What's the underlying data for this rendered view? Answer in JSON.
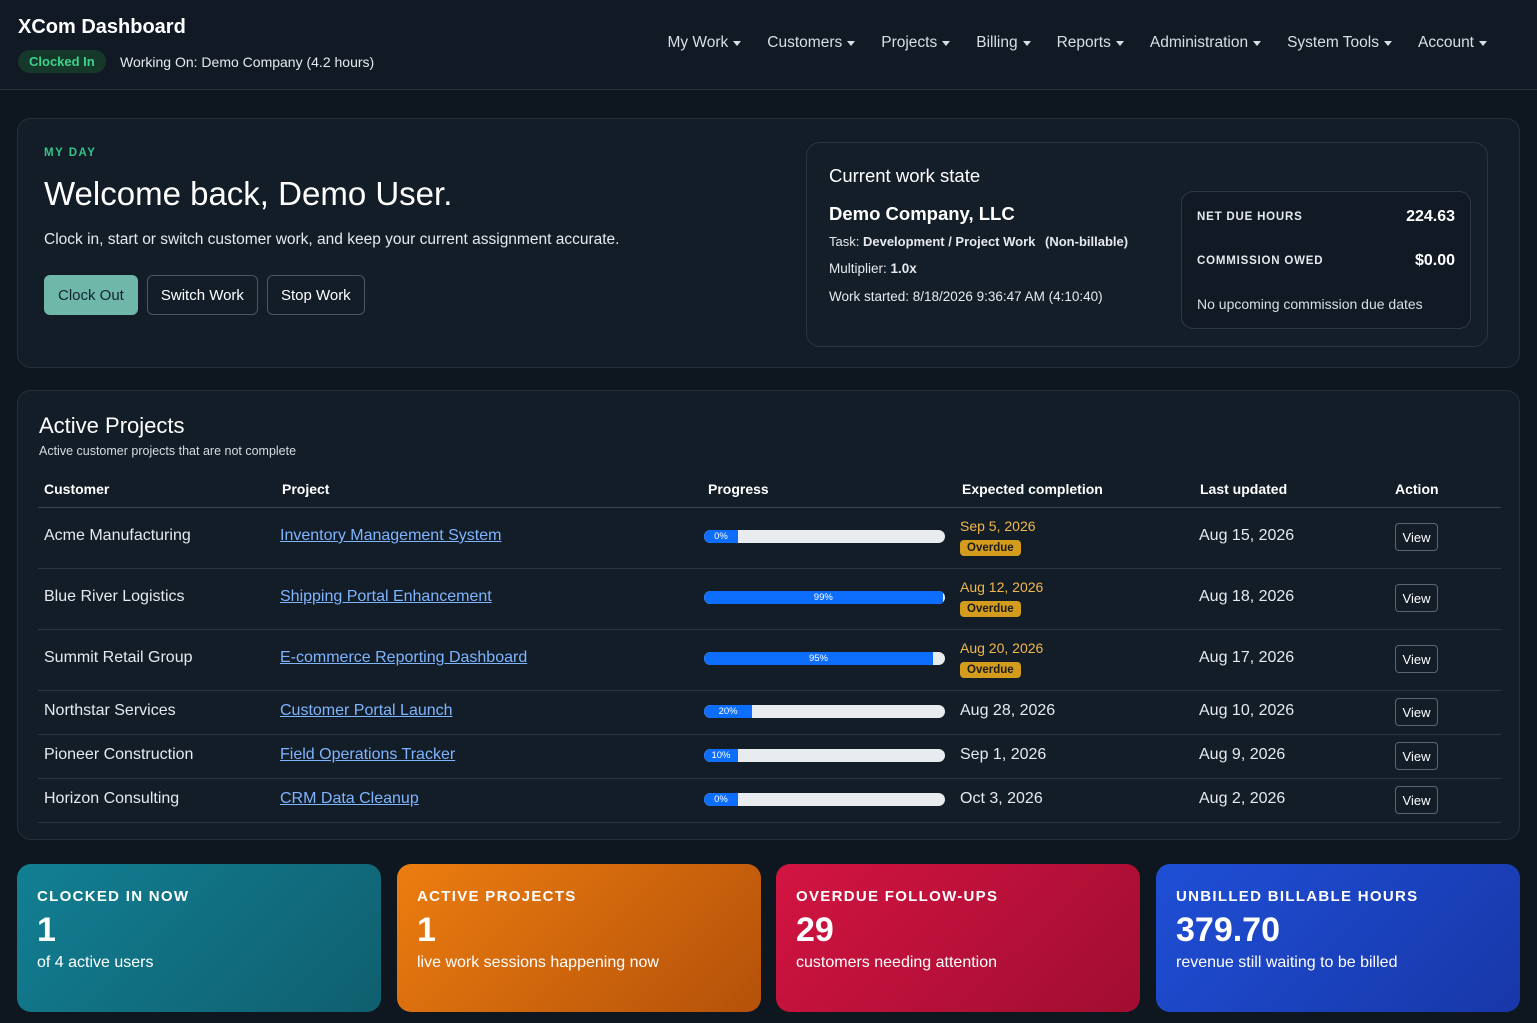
{
  "header": {
    "brand": "XCom Dashboard",
    "status": "Clocked In",
    "working_on": "Working On: Demo Company (4.2 hours)",
    "nav": [
      "My Work",
      "Customers",
      "Projects",
      "Billing",
      "Reports",
      "Administration",
      "System Tools",
      "Account"
    ]
  },
  "my_day": {
    "eyebrow": "MY DAY",
    "welcome": "Welcome back, Demo User.",
    "lead": "Clock in, start or switch customer work, and keep your current assignment accurate.",
    "buttons": {
      "clock_out": "Clock Out",
      "switch_work": "Switch Work",
      "stop_work": "Stop Work"
    },
    "work_state": {
      "title": "Current work state",
      "company": "Demo Company, LLC",
      "task_label": "Task:",
      "task_value": "Development / Project Work",
      "task_billing": "(Non-billable)",
      "multiplier_label": "Multiplier:",
      "multiplier_value": "1.0x",
      "started": "Work started: 8/18/2026 9:36:47 AM (4:10:40)"
    },
    "stats": {
      "net_due_label": "NET DUE HOURS",
      "net_due_value": "224.63",
      "commission_label": "COMMISSION OWED",
      "commission_value": "$0.00",
      "note": "No upcoming commission due dates"
    }
  },
  "projects": {
    "title": "Active Projects",
    "subtitle": "Active customer projects that are not complete",
    "columns": [
      "Customer",
      "Project",
      "Progress",
      "Expected completion",
      "Last updated",
      "Action"
    ],
    "rows": [
      {
        "customer": "Acme Manufacturing",
        "project": "Inventory Management System",
        "progress": 0,
        "progress_label": "0%",
        "expected": "Sep 5, 2026",
        "badge": "Overdue",
        "updated": "Aug 15, 2026",
        "action": "View"
      },
      {
        "customer": "Blue River Logistics",
        "project": "Shipping Portal Enhancement",
        "progress": 99,
        "progress_label": "99%",
        "expected": "Aug 12, 2026",
        "badge": "Overdue",
        "updated": "Aug 18, 2026",
        "action": "View"
      },
      {
        "customer": "Summit Retail Group",
        "project": "E-commerce Reporting Dashboard",
        "progress": 95,
        "progress_label": "95%",
        "expected": "Aug 20, 2026",
        "badge": "Overdue",
        "updated": "Aug 17, 2026",
        "action": "View"
      },
      {
        "customer": "Northstar Services",
        "project": "Customer Portal Launch",
        "progress": 20,
        "progress_label": "20%",
        "expected": "Aug 28, 2026",
        "badge": "",
        "updated": "Aug 10, 2026",
        "action": "View"
      },
      {
        "customer": "Pioneer Construction",
        "project": "Field Operations Tracker",
        "progress": 10,
        "progress_label": "10%",
        "expected": "Sep 1, 2026",
        "badge": "",
        "updated": "Aug 9, 2026",
        "action": "View"
      },
      {
        "customer": "Horizon Consulting",
        "project": "CRM Data Cleanup",
        "progress": 0,
        "progress_label": "0%",
        "expected": "Oct 3, 2026",
        "badge": "",
        "updated": "Aug 2, 2026",
        "action": "View"
      }
    ]
  },
  "kpis": [
    {
      "label": "CLOCKED IN NOW",
      "value": "1",
      "desc": "of 4 active users",
      "color": "#127f93"
    },
    {
      "label": "ACTIVE PROJECTS",
      "value": "1",
      "desc": "live work sessions happening now",
      "color": "#ec7d0f"
    },
    {
      "label": "OVERDUE FOLLOW-UPS",
      "value": "29",
      "desc": "customers needing attention",
      "color": "#d31442"
    },
    {
      "label": "UNBILLED BILLABLE HOURS",
      "value": "379.70",
      "desc": "revenue still waiting to be billed",
      "color": "#1f4fd6"
    }
  ]
}
